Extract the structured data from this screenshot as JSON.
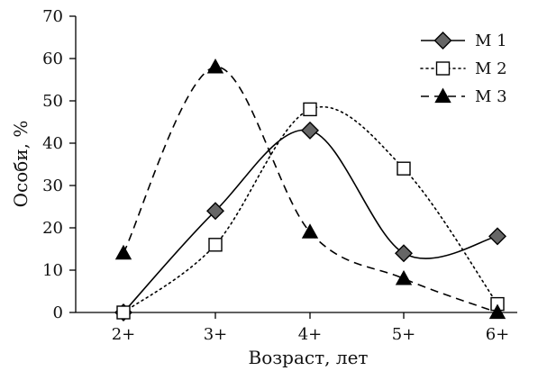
{
  "chart_data": {
    "type": "line",
    "title": "",
    "xlabel": "Возраст, лет",
    "ylabel": "Особи, %",
    "categories": [
      "2+",
      "3+",
      "4+",
      "5+",
      "6+"
    ],
    "ylim": [
      0,
      70
    ],
    "yticks": [
      0,
      10,
      20,
      30,
      40,
      50,
      60,
      70
    ],
    "grid": false,
    "legend_position": "top-right",
    "series": [
      {
        "name": "М 1",
        "values": [
          0,
          24,
          43,
          14,
          18
        ],
        "marker": "diamond-filled",
        "line": "solid",
        "color": "#000000",
        "fill": "#666666"
      },
      {
        "name": "М 2",
        "values": [
          0,
          16,
          48,
          34,
          2
        ],
        "marker": "square-open",
        "line": "dotted",
        "color": "#000000",
        "fill": "#ffffff"
      },
      {
        "name": "М 3",
        "values": [
          14,
          58,
          19,
          8,
          0
        ],
        "marker": "triangle-filled",
        "line": "dashed",
        "color": "#000000",
        "fill": "#000000"
      }
    ]
  }
}
